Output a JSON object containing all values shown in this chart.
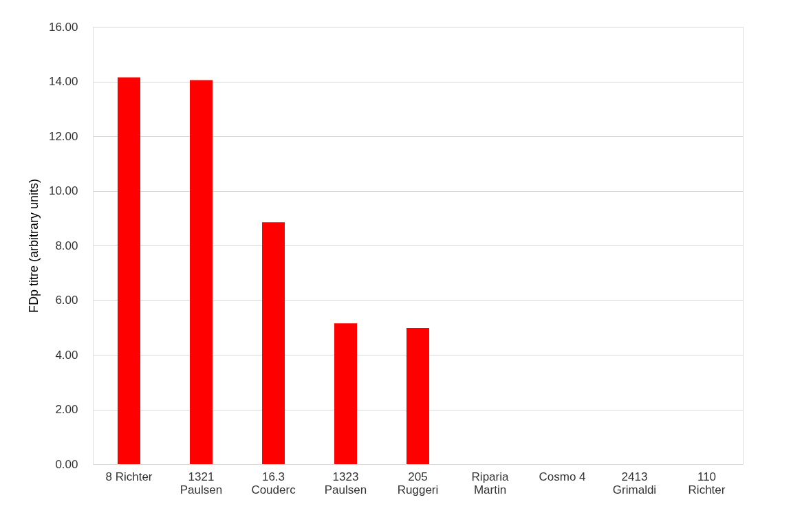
{
  "chart_data": {
    "type": "bar",
    "ylabel": "FDp titre (arbitrary units)",
    "categories": [
      "8 Richter",
      "1321\nPaulsen",
      "16.3\nCouderc",
      "1323\nPaulsen",
      "205\nRuggeri",
      "Riparia\nMartin",
      "Cosmo 4",
      "2413\nGrimaldi",
      "110\nRichter"
    ],
    "values": [
      14.15,
      14.05,
      8.85,
      5.15,
      4.98,
      0,
      0,
      0,
      0
    ],
    "color": "#ff0000",
    "ylim": [
      0,
      16
    ],
    "yticks": [
      {
        "value": 0,
        "label": "0.00"
      },
      {
        "value": 2,
        "label": "2.00"
      },
      {
        "value": 4,
        "label": "4.00"
      },
      {
        "value": 6,
        "label": "6.00"
      },
      {
        "value": 8,
        "label": "8.00"
      },
      {
        "value": 10,
        "label": "10.00"
      },
      {
        "value": 12,
        "label": "12.00"
      },
      {
        "value": 14,
        "label": "14.00"
      },
      {
        "value": 16,
        "label": "16.00"
      }
    ],
    "grid": "y"
  }
}
